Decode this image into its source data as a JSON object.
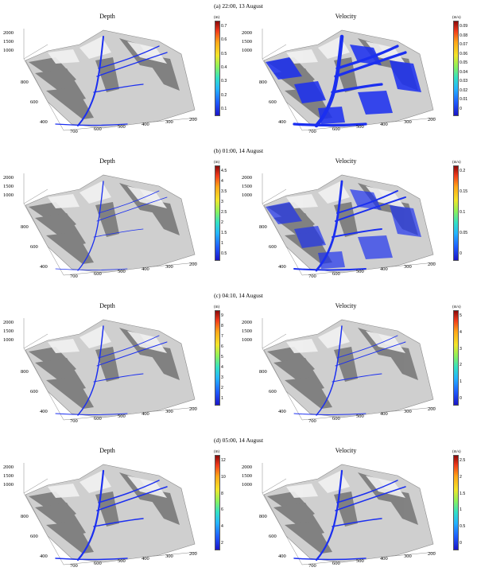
{
  "rows": [
    {
      "caption": "(a) 22:00, 13 August",
      "depth": {
        "title": "Depth",
        "unit": "(m)",
        "ticks": [
          "0.7",
          "0.6",
          "0.5",
          "0.4",
          "0.3",
          "0.2",
          "0.1"
        ],
        "coverage": 0.25
      },
      "velocity": {
        "title": "Velocity",
        "unit": "(m/s)",
        "ticks": [
          "0.09",
          "0.08",
          "0.07",
          "0.06",
          "0.05",
          "0.04",
          "0.03",
          "0.02",
          "0.01",
          "0"
        ],
        "coverage": 0.9
      }
    },
    {
      "caption": "(b) 01:00, 14 August",
      "depth": {
        "title": "Depth",
        "unit": "(m)",
        "ticks": [
          "4.5",
          "4",
          "3.5",
          "3",
          "2.5",
          "2",
          "1.5",
          "1",
          "0.5"
        ],
        "coverage": 0.08
      },
      "velocity": {
        "title": "Velocity",
        "unit": "(m/s)",
        "ticks": [
          "0.2",
          "0.15",
          "0.1",
          "0.05",
          "0"
        ],
        "coverage": 0.45
      }
    },
    {
      "caption": "(c) 04:10, 14 August",
      "depth": {
        "title": "Depth",
        "unit": "(m)",
        "ticks": [
          "9",
          "8",
          "7",
          "6",
          "5",
          "4",
          "3",
          "2",
          "1"
        ],
        "coverage": 0.12
      },
      "velocity": {
        "title": "Velocity",
        "unit": "(m/s)",
        "ticks": [
          "5",
          "4",
          "3",
          "2",
          "1",
          "0"
        ],
        "coverage": 0.12
      }
    },
    {
      "caption": "(d) 05:00, 14 August",
      "depth": {
        "title": "Depth",
        "unit": "(m)",
        "ticks": [
          "12",
          "10",
          "8",
          "6",
          "4",
          "2"
        ],
        "coverage": 0.3
      },
      "velocity": {
        "title": "Velocity",
        "unit": "(m/s)",
        "ticks": [
          "2.5",
          "2",
          "1.5",
          "1",
          "0.5",
          "0"
        ],
        "coverage": 0.3
      }
    }
  ],
  "axes": {
    "z_ticks": [
      "2000",
      "1500",
      "1000"
    ],
    "y_ticks": [
      "800",
      "600",
      "400"
    ],
    "x_ticks": [
      "700",
      "600",
      "500",
      "400",
      "300",
      "200"
    ]
  }
}
